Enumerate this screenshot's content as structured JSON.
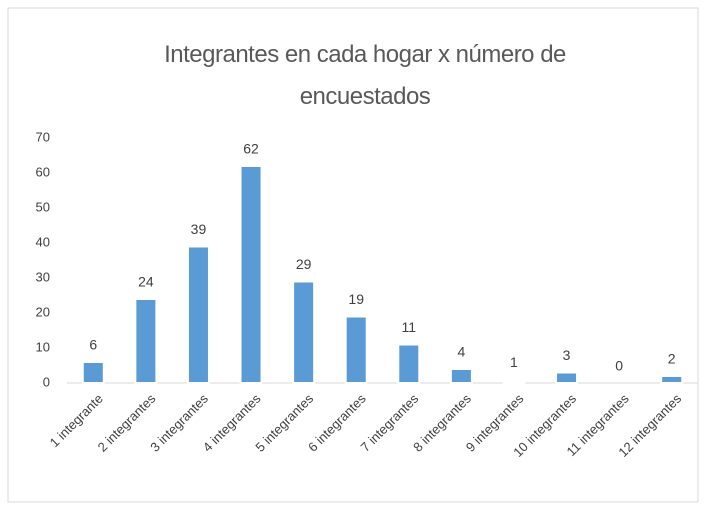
{
  "chart_data": {
    "type": "bar",
    "title": "Integrantes  en cada hogar x número de encuestados",
    "categories": [
      "1 integrante",
      "2 integrantes",
      "3 integrantes",
      "4 integrantes",
      "5 integrantes",
      "6 integrantes",
      "7 integrantes",
      "8 integrantes",
      "9 integrantes",
      "10 integrantes",
      "11 integrantes",
      "12 integrantes"
    ],
    "values": [
      6,
      24,
      39,
      62,
      29,
      19,
      11,
      4,
      1,
      3,
      0,
      2
    ],
    "colors": [
      "#5b9bd5",
      "#5b9bd5",
      "#5b9bd5",
      "#5b9bd5",
      "#5b9bd5",
      "#5b9bd5",
      "#5b9bd5",
      "#5b9bd5",
      "#ffffff",
      "#5b9bd5",
      "#5b9bd5",
      "#5b9bd5"
    ],
    "ylim": [
      0,
      70
    ],
    "yticks": [
      0,
      10,
      20,
      30,
      40,
      50,
      60,
      70
    ],
    "grid": false
  }
}
